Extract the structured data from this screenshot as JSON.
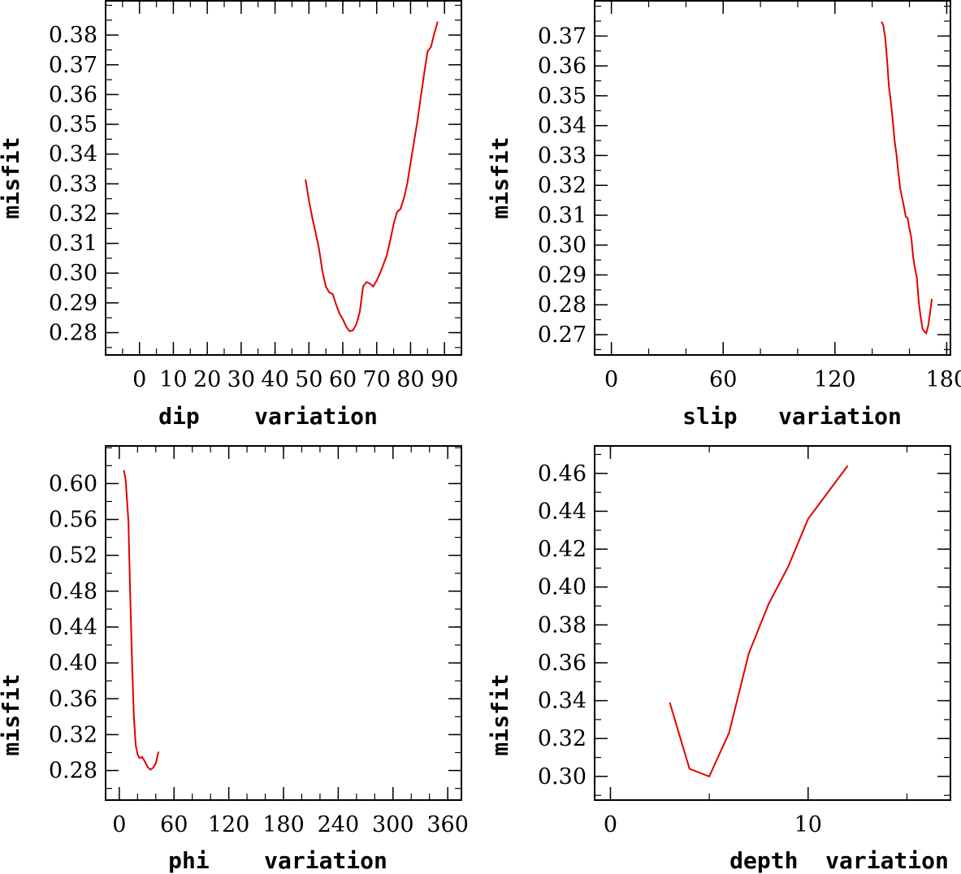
{
  "chart_data": [
    {
      "type": "line",
      "xlabel": "dip    variation",
      "ylabel": "misfit",
      "xlim": [
        -10,
        95
      ],
      "ylim": [
        0.2725,
        0.3915
      ],
      "x_ticks": [
        "0",
        "10",
        "20",
        "30",
        "40",
        "50",
        "60",
        "70",
        "80",
        "90"
      ],
      "y_ticks": [
        "0.28",
        "0.29",
        "0.30",
        "0.31",
        "0.32",
        "0.33",
        "0.34",
        "0.35",
        "0.36",
        "0.37",
        "0.38"
      ],
      "line_color": "#e00000",
      "x": [
        49,
        50,
        51,
        52,
        53,
        54,
        55,
        56,
        57,
        58,
        59,
        60,
        61,
        62,
        63,
        64,
        65,
        66,
        67,
        68,
        69,
        70,
        71,
        72,
        73,
        74,
        75,
        76,
        77,
        78,
        79,
        80,
        81,
        82,
        83,
        84,
        85,
        86,
        87,
        88
      ],
      "y": [
        0.3315,
        0.3245,
        0.3185,
        0.3135,
        0.308,
        0.3005,
        0.2955,
        0.2935,
        0.293,
        0.2895,
        0.2865,
        0.2845,
        0.282,
        0.2805,
        0.2808,
        0.2828,
        0.287,
        0.2955,
        0.297,
        0.2965,
        0.2955,
        0.2975,
        0.3,
        0.303,
        0.306,
        0.311,
        0.3165,
        0.3205,
        0.3215,
        0.325,
        0.33,
        0.337,
        0.344,
        0.351,
        0.359,
        0.367,
        0.3745,
        0.376,
        0.3805,
        0.3845
      ]
    },
    {
      "type": "line",
      "xlabel": "slip   variation",
      "ylabel": "misfit",
      "xlim": [
        -9,
        182
      ],
      "ylim": [
        0.2632,
        0.3818
      ],
      "x_ticks": [
        "0",
        "60",
        "120",
        "180"
      ],
      "y_ticks": [
        "0.27",
        "0.28",
        "0.29",
        "0.30",
        "0.31",
        "0.32",
        "0.33",
        "0.34",
        "0.35",
        "0.36",
        "0.37"
      ],
      "line_color": "#e00000",
      "x": [
        145,
        146,
        147,
        148,
        149,
        150,
        151,
        152,
        153,
        154,
        155,
        156,
        157,
        158,
        159,
        160,
        161,
        162,
        163,
        164,
        165,
        166,
        167,
        168,
        169,
        170,
        171,
        172
      ],
      "y": [
        0.3748,
        0.3735,
        0.3695,
        0.362,
        0.353,
        0.348,
        0.342,
        0.335,
        0.3305,
        0.3245,
        0.319,
        0.316,
        0.313,
        0.3095,
        0.309,
        0.3055,
        0.3025,
        0.296,
        0.292,
        0.289,
        0.281,
        0.276,
        0.272,
        0.271,
        0.2705,
        0.2728,
        0.277,
        0.282
      ]
    },
    {
      "type": "line",
      "xlabel": "phi    variation",
      "ylabel": "misfit",
      "xlim": [
        -15,
        375
      ],
      "ylim": [
        0.247,
        0.642
      ],
      "x_ticks": [
        "0",
        "60",
        "120",
        "180",
        "240",
        "300",
        "360"
      ],
      "y_ticks": [
        "0.28",
        "0.32",
        "0.36",
        "0.40",
        "0.44",
        "0.48",
        "0.52",
        "0.56",
        "0.60"
      ],
      "line_color": "#e00000",
      "x": [
        5,
        7,
        10,
        12,
        14,
        16,
        18,
        20,
        22,
        25,
        28,
        31,
        34,
        37,
        40,
        43
      ],
      "y": [
        0.615,
        0.604,
        0.558,
        0.475,
        0.4,
        0.34,
        0.308,
        0.298,
        0.294,
        0.295,
        0.29,
        0.284,
        0.281,
        0.283,
        0.288,
        0.301
      ]
    },
    {
      "type": "line",
      "xlabel": "depth  variation",
      "ylabel": "misfit",
      "xlim": [
        -0.8,
        17.2
      ],
      "ylim": [
        0.2875,
        0.4745
      ],
      "x_ticks": [
        "0",
        "10"
      ],
      "y_ticks": [
        "0.30",
        "0.32",
        "0.34",
        "0.36",
        "0.38",
        "0.40",
        "0.42",
        "0.44",
        "0.46"
      ],
      "line_color": "#e00000",
      "x": [
        3,
        4,
        5,
        6,
        7,
        8,
        9,
        10,
        11,
        12
      ],
      "y": [
        0.339,
        0.304,
        0.3,
        0.323,
        0.365,
        0.391,
        0.411,
        0.436,
        0.45,
        0.464
      ]
    }
  ]
}
